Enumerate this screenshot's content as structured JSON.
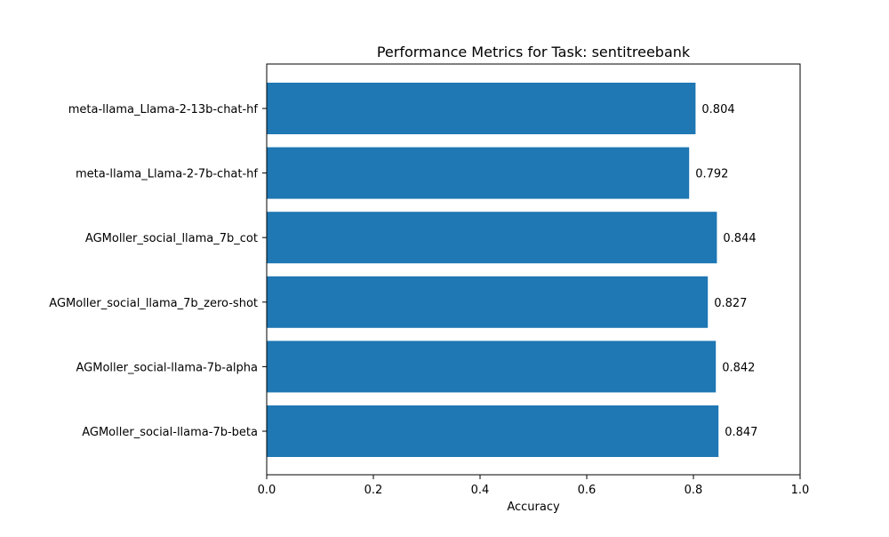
{
  "chart_data": {
    "type": "bar",
    "orientation": "horizontal",
    "title": "Performance Metrics for Task: sentitreebank",
    "xlabel": "Accuracy",
    "ylabel": "",
    "xlim": [
      0,
      1
    ],
    "x_ticks": [
      0.0,
      0.2,
      0.4,
      0.6,
      0.8,
      1.0
    ],
    "x_tick_labels": [
      "0.0",
      "0.2",
      "0.4",
      "0.6",
      "0.8",
      "1.0"
    ],
    "grid": false,
    "bar_color": "#1f77b4",
    "categories": [
      "meta-llama_Llama-2-13b-chat-hf",
      "meta-llama_Llama-2-7b-chat-hf",
      "AGMoller_social_llama_7b_cot",
      "AGMoller_social_llama_7b_zero-shot",
      "AGMoller_social-llama-7b-alpha",
      "AGMoller_social-llama-7b-beta"
    ],
    "values": [
      0.804,
      0.792,
      0.844,
      0.827,
      0.842,
      0.847
    ],
    "value_labels": [
      "0.804",
      "0.792",
      "0.844",
      "0.827",
      "0.842",
      "0.847"
    ]
  }
}
